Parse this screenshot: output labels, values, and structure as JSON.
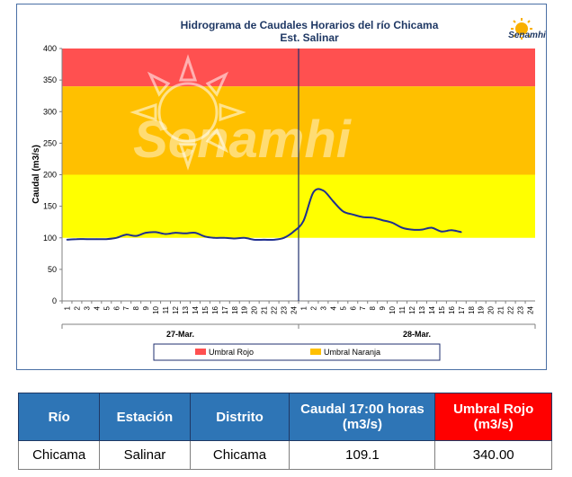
{
  "chart_data": {
    "type": "line",
    "title": "Hidrograma de Caudales Horarios del río Chicama",
    "subtitle": "Est. Salinar",
    "ylabel": "Caudal  (m3/s)",
    "ylim": [
      0,
      400
    ],
    "yticks": [
      0,
      50,
      100,
      150,
      200,
      250,
      300,
      350,
      400
    ],
    "x_tick_labels": [
      "1",
      "2",
      "3",
      "4",
      "5",
      "6",
      "7",
      "8",
      "9",
      "10",
      "11",
      "12",
      "13",
      "14",
      "15",
      "16",
      "17",
      "18",
      "19",
      "20",
      "21",
      "22",
      "23",
      "24",
      "1",
      "2",
      "3",
      "4",
      "5",
      "6",
      "7",
      "8",
      "9",
      "10",
      "11",
      "12",
      "13",
      "14",
      "15",
      "16",
      "17",
      "18",
      "19",
      "20",
      "21",
      "22",
      "23",
      "24"
    ],
    "day_labels": [
      "27-Mar.",
      "28-Mar."
    ],
    "bands": [
      {
        "name": "Umbral Rojo",
        "from": 340,
        "to": 400,
        "color": "#ff5050"
      },
      {
        "name": "Umbral Naranja",
        "from": 200,
        "to": 340,
        "color": "#ffc000"
      },
      {
        "name": "",
        "from": 100,
        "to": 200,
        "color": "#ffff00"
      }
    ],
    "legend": [
      {
        "label": "Umbral Rojo",
        "color": "#ff5050"
      },
      {
        "label": "Umbral Naranja",
        "color": "#ffc000"
      }
    ],
    "legend_position": "bottom",
    "series": [
      {
        "color": "#1f2f8f",
        "values": [
          97,
          98,
          98,
          98,
          98,
          100,
          105,
          103,
          108,
          109,
          106,
          108,
          107,
          108,
          102,
          100,
          100,
          99,
          100,
          97,
          97,
          97,
          100,
          110,
          127,
          172,
          175,
          158,
          142,
          137,
          133,
          132,
          128,
          124,
          116,
          113,
          113,
          116,
          110,
          112,
          109.1
        ]
      }
    ],
    "watermark": "Senamhi",
    "logo_text": "Senamhi"
  },
  "table": {
    "headers": [
      "Río",
      "Estación",
      "Distrito",
      "Caudal  17:00 horas (m3/s)",
      "Umbral Rojo (m3/s)"
    ],
    "row": [
      "Chicama",
      "Salinar",
      "Chicama",
      "109.1",
      "340.00"
    ]
  }
}
